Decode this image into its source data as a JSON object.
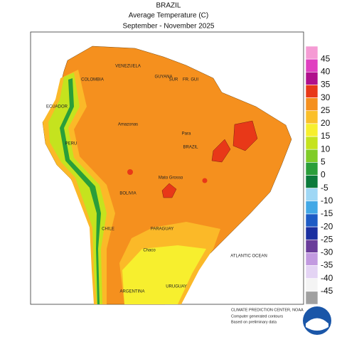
{
  "header": {
    "region": "BRAZIL",
    "variable": "Average Temperature (C)",
    "period": "September - November 2025"
  },
  "places": [
    "BRAZIL",
    "COLOMBIA",
    "VENEZUELA",
    "GUYANA",
    "SUR",
    "FR. GUI",
    "ECUADOR",
    "PERU",
    "BOLIVIA",
    "PARAGUAY",
    "CHILE",
    "ARGENTINA",
    "URUGUAY",
    "ATLANTIC OCEAN",
    "Amazonas",
    "Para",
    "Mato Grosso",
    "Chaco"
  ],
  "legend": {
    "labels": [
      45,
      40,
      35,
      30,
      25,
      20,
      15,
      10,
      5,
      0,
      -5,
      -10,
      -15,
      -20,
      -25,
      -30,
      -35,
      -40,
      -45
    ],
    "colors": [
      "#f59bd4",
      "#e040c0",
      "#b0108c",
      "#e83818",
      "#f5901e",
      "#fbbf29",
      "#f7ef2e",
      "#c5e31e",
      "#7fcc28",
      "#2a9e3a",
      "#0b7a3b",
      "#9fd7f5",
      "#42a8e6",
      "#1d5bc5",
      "#1a2fa0",
      "#6a3d9a",
      "#c29ae0",
      "#e4d4f4",
      "#f4f4f4",
      "#a0a0a0"
    ]
  },
  "footer": [
    "CLIMATE PREDICTION CENTER, NOAA",
    "Computer generated contours",
    "Based on preliminary data"
  ]
}
